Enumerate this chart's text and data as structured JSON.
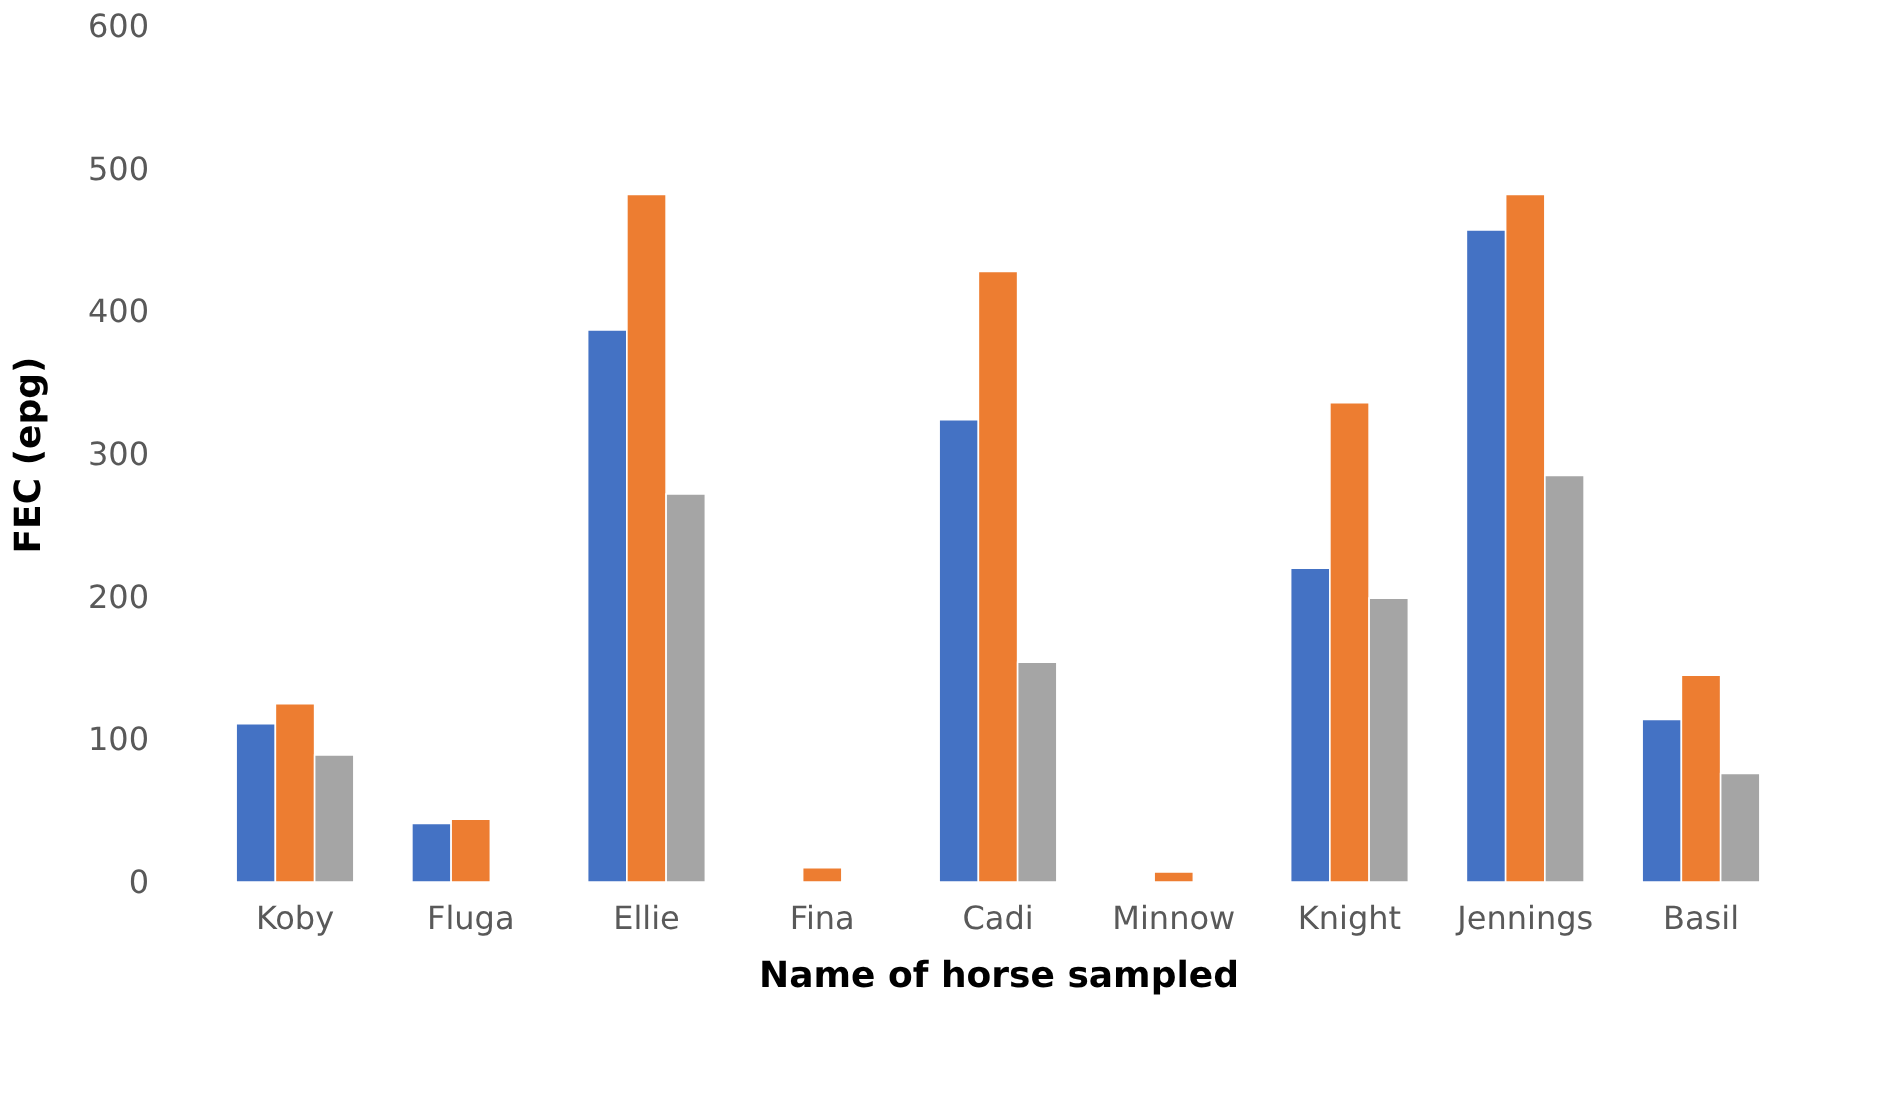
{
  "chart_data": {
    "type": "bar",
    "xlabel": "Name of horse sampled",
    "ylabel": "FEC (epg)",
    "categories": [
      "Koby",
      "Fluga",
      "Ellie",
      "Fina",
      "Cadi",
      "Minnow",
      "Knight",
      "Jennings",
      "Basil"
    ],
    "series": [
      {
        "color": "#4472c4",
        "values": [
          111,
          41,
          387,
          null,
          324,
          null,
          220,
          457,
          114
        ]
      },
      {
        "color": "#ed7d31",
        "values": [
          125,
          44,
          482,
          10,
          428,
          7,
          336,
          482,
          145
        ]
      },
      {
        "color": "#a5a5a5",
        "values": [
          89,
          null,
          272,
          null,
          154,
          null,
          199,
          285,
          76
        ]
      }
    ],
    "ylim": [
      0,
      600
    ],
    "yticks": [
      0,
      100,
      200,
      300,
      400,
      500,
      600
    ],
    "grid": false
  }
}
